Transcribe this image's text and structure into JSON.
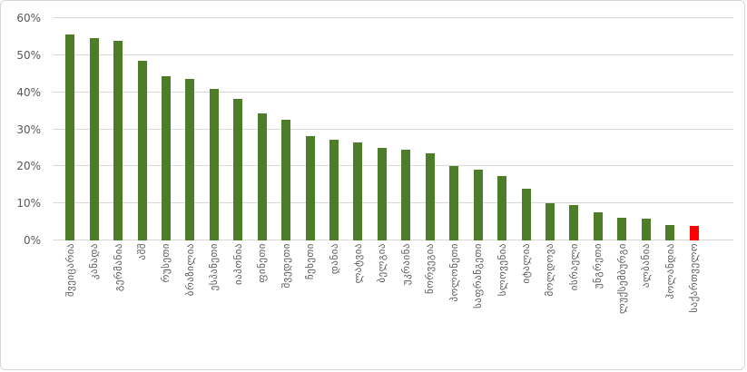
{
  "chart_data": {
    "type": "bar",
    "title": "",
    "xlabel": "",
    "ylabel": "",
    "categories": [
      "შვეიცარია",
      "კანადა",
      "გერმანია",
      "აშშ",
      "რუსეთი",
      "ბრაზილია",
      "ესპანეთი",
      "იაპონია",
      "ფინეთი",
      "შვედეთი",
      "ჩეხეთი",
      "დანია",
      "ლატვია",
      "ბელგია",
      "უკრაინა",
      "ნორვეგია",
      "პოლონეთი",
      "საფრანგეთი",
      "სლოვენია",
      "იტალია",
      "მოლდოვა",
      "ისრაელი",
      "უნგრეთი",
      "ლუქსემბურგი",
      "ალბანია",
      "ჰოლანდია",
      "საქართველო"
    ],
    "values": [
      55.5,
      54.7,
      54.0,
      48.6,
      44.3,
      43.6,
      41.0,
      38.1,
      34.2,
      32.6,
      28.2,
      27.1,
      26.4,
      25.0,
      24.6,
      23.6,
      20.0,
      19.0,
      17.5,
      14.0,
      10.0,
      9.5,
      7.5,
      6.2,
      6.0,
      4.2,
      4.0
    ],
    "ylim": [
      0,
      60
    ],
    "ytick_labels": [
      "0%",
      "10%",
      "20%",
      "30%",
      "40%",
      "50%",
      "60%"
    ],
    "grid": "horizontal",
    "legend": "none",
    "bar_color": "#4e7d28",
    "highlight_color": "#ff0000",
    "highlight_index": 26,
    "gridline_color": "#d9d9d9",
    "tick_label_color": "#595959"
  }
}
